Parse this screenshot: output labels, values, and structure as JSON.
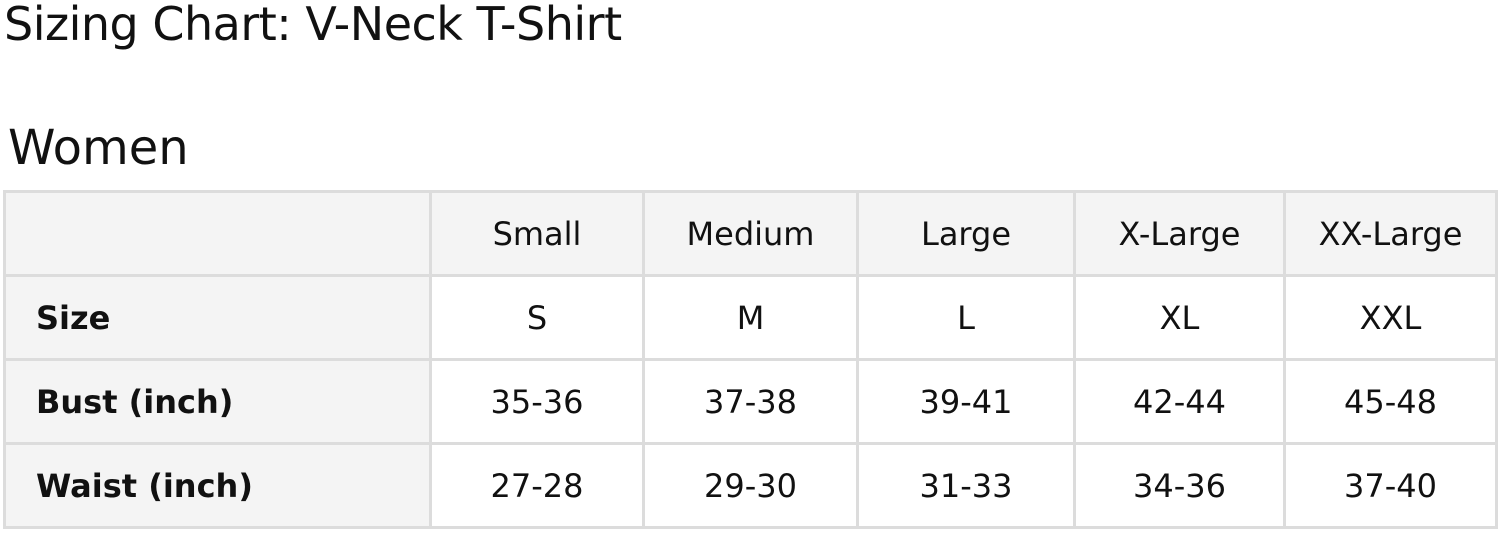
{
  "title": "Sizing Chart: V-Neck T-Shirt",
  "section": "Women",
  "table": {
    "headers": [
      "",
      "Small",
      "Medium",
      "Large",
      "X-Large",
      "XX-Large"
    ],
    "rows": [
      {
        "label": "Size",
        "values": [
          "S",
          "M",
          "L",
          "XL",
          "XXL"
        ]
      },
      {
        "label": "Bust (inch)",
        "values": [
          "35-36",
          "37-38",
          "39-41",
          "42-44",
          "45-48"
        ]
      },
      {
        "label": "Waist (inch)",
        "values": [
          "27-28",
          "29-30",
          "31-33",
          "34-36",
          "37-40"
        ]
      }
    ]
  }
}
